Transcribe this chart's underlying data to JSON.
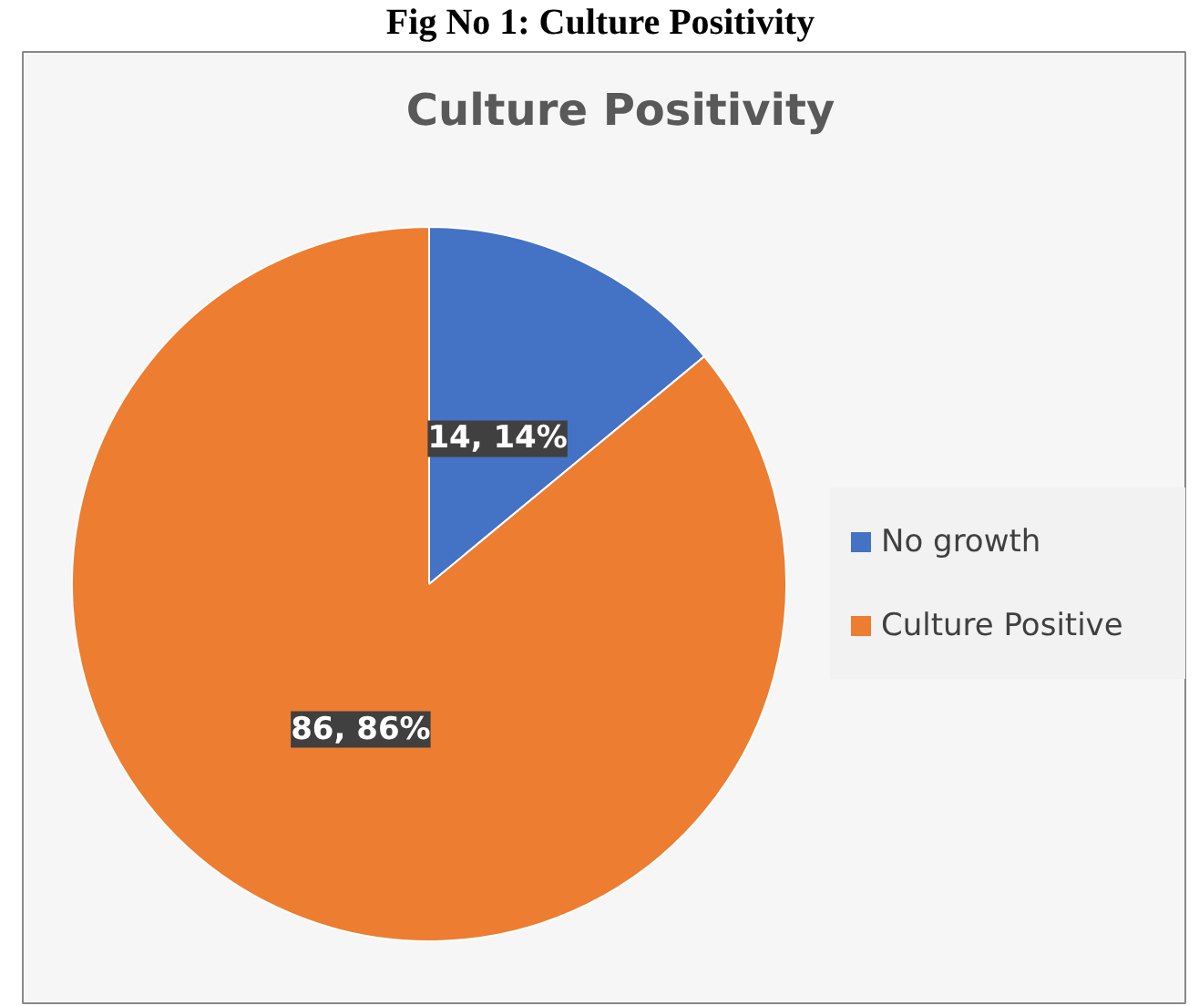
{
  "chart_data": {
    "type": "pie",
    "title": "Culture Positivity",
    "annotations": [
      "Fig No 1: Culture Positivity"
    ],
    "categories": [
      "No growth",
      "Culture Positive"
    ],
    "values": [
      14,
      86
    ],
    "colors": [
      "#4472c4",
      "#ed7d31"
    ],
    "value_labels": [
      "14, 14%",
      "86, 86%"
    ],
    "legend": "right"
  }
}
